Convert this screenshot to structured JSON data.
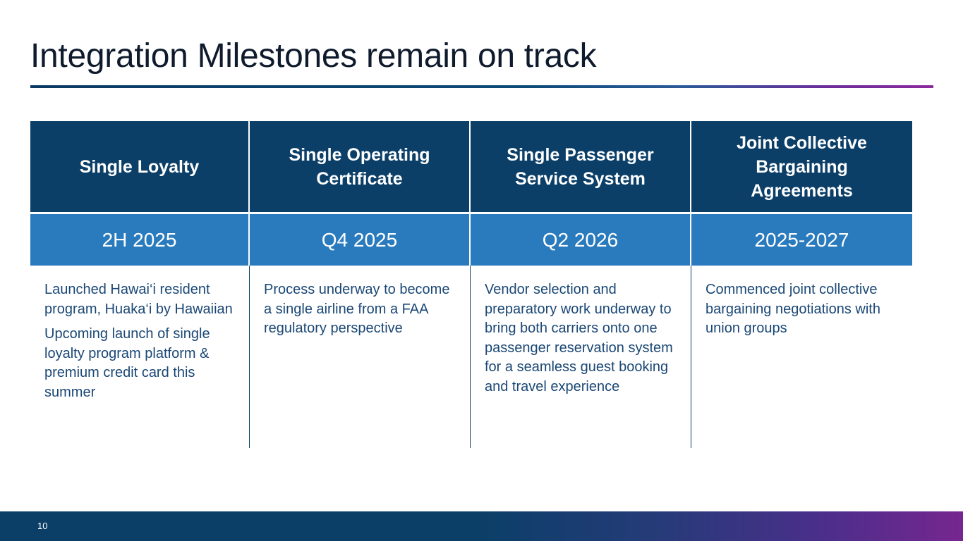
{
  "slide": {
    "title": "Integration Milestones remain on track",
    "page_number": "10"
  },
  "milestones": [
    {
      "heading": "Single Loyalty",
      "timing": "2H 2025",
      "details": [
        "Launched Hawai‘i resident program, Huaka‘i by Hawaiian",
        "Upcoming launch of single loyalty program platform & premium credit card this summer"
      ]
    },
    {
      "heading": "Single Operating Certificate",
      "timing": "Q4 2025",
      "details": [
        "Process underway to become a single airline from a FAA regulatory perspective"
      ]
    },
    {
      "heading": "Single Passenger Service System",
      "timing": "Q2 2026",
      "details": [
        "Vendor selection and preparatory work underway to bring both carriers onto one passenger reservation system for a seamless guest booking and travel experience"
      ]
    },
    {
      "heading": "Joint Collective Bargaining Agreements",
      "timing": "2025-2027",
      "details": [
        "Commenced joint collective bargaining negotiations with union groups"
      ]
    }
  ],
  "colors": {
    "header_bg": "#0b3f68",
    "date_bg": "#2a7bbd",
    "body_text": "#1a4775",
    "title_text": "#0f1b2d",
    "accent_purple": "#8b2a9c"
  }
}
